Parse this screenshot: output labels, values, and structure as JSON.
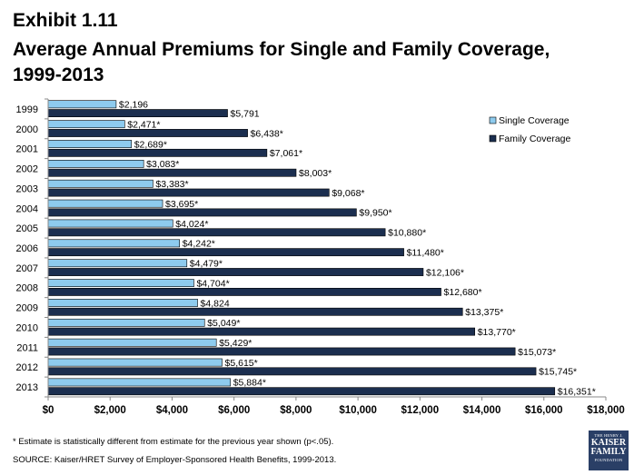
{
  "header": {
    "line1": "Exhibit 1.11",
    "line2": "Average Annual Premiums for Single and Family Coverage,",
    "line3": "1999-2013"
  },
  "chart_data": {
    "type": "bar",
    "orientation": "horizontal",
    "categories": [
      "1999",
      "2000",
      "2001",
      "2002",
      "2003",
      "2004",
      "2005",
      "2006",
      "2007",
      "2008",
      "2009",
      "2010",
      "2011",
      "2012",
      "2013"
    ],
    "series": [
      {
        "name": "Single Coverage",
        "color": "#8ecbee",
        "values": [
          2196,
          2471,
          2689,
          3083,
          3383,
          3695,
          4024,
          4242,
          4479,
          4704,
          4824,
          5049,
          5429,
          5615,
          5884
        ],
        "labels": [
          "$2,196",
          "$2,471*",
          "$2,689*",
          "$3,083*",
          "$3,383*",
          "$3,695*",
          "$4,024*",
          "$4,242*",
          "$4,479*",
          "$4,704*",
          "$4,824",
          "$5,049*",
          "$5,429*",
          "$5,615*",
          "$5,884*"
        ]
      },
      {
        "name": "Family Coverage",
        "color": "#1b2e4f",
        "values": [
          5791,
          6438,
          7061,
          8003,
          9068,
          9950,
          10880,
          11480,
          12106,
          12680,
          13375,
          13770,
          15073,
          15745,
          16351
        ],
        "labels": [
          "$5,791",
          "$6,438*",
          "$7,061*",
          "$8,003*",
          "$9,068*",
          "$9,950*",
          "$10,880*",
          "$11,480*",
          "$12,106*",
          "$12,680*",
          "$13,375*",
          "$13,770*",
          "$15,073*",
          "$15,745*",
          "$16,351*"
        ]
      }
    ],
    "xlim": [
      0,
      18000
    ],
    "xticks": [
      0,
      2000,
      4000,
      6000,
      8000,
      10000,
      12000,
      14000,
      16000,
      18000
    ],
    "xtick_labels": [
      "$0",
      "$2,000",
      "$4,000",
      "$6,000",
      "$8,000",
      "$10,000",
      "$12,000",
      "$14,000",
      "$16,000",
      "$18,000"
    ],
    "legend": "top-right",
    "grid": false
  },
  "footnotes": {
    "asterisk": "* Estimate is statistically different from estimate for the previous year shown (p<.05).",
    "source": "SOURCE:  Kaiser/HRET Survey of Employer-Sponsored Health Benefits, 1999-2013."
  },
  "logo": {
    "line1": "THE HENRY J.",
    "line2": "KAISER",
    "line3": "FAMILY",
    "line4": "FOUNDATION"
  }
}
